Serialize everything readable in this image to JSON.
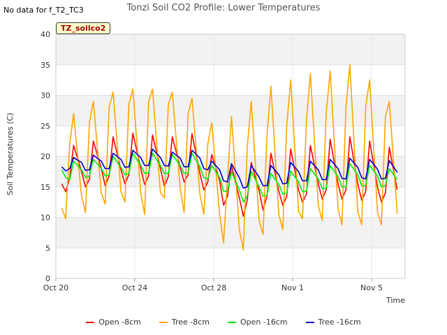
{
  "no_data_text": "No data for f_T2_TC3",
  "badge_text": "TZ_soilco2",
  "chart_data": {
    "type": "line",
    "title": "Tonzi Soil CO2 Profile: Lower Temperatures",
    "xlabel": "Time",
    "ylabel": "Soil Temperatures (C)",
    "xlim": [
      0,
      17.7
    ],
    "ylim": [
      0,
      40
    ],
    "yticks": [
      0,
      5,
      10,
      15,
      20,
      25,
      30,
      35,
      40
    ],
    "xticks": [
      {
        "value": 0,
        "label": "Oct 20"
      },
      {
        "value": 4,
        "label": "Oct 24"
      },
      {
        "value": 8,
        "label": "Oct 28"
      },
      {
        "value": 12,
        "label": "Nov 1"
      },
      {
        "value": 16,
        "label": "Nov 5"
      }
    ],
    "grid": true,
    "legend_position": "bottom",
    "series": [
      {
        "name": "Open -8cm",
        "color": "#ff0000",
        "x": [
          0.3,
          0.5,
          0.7,
          0.9,
          1.3,
          1.5,
          1.7,
          1.9,
          2.3,
          2.5,
          2.7,
          2.9,
          3.3,
          3.5,
          3.7,
          3.9,
          4.3,
          4.5,
          4.7,
          4.9,
          5.3,
          5.5,
          5.7,
          5.9,
          6.3,
          6.5,
          6.7,
          6.9,
          7.3,
          7.5,
          7.7,
          7.9,
          8.3,
          8.5,
          8.7,
          8.9,
          9.3,
          9.5,
          9.7,
          9.9,
          10.3,
          10.5,
          10.7,
          10.9,
          11.3,
          11.5,
          11.7,
          11.9,
          12.3,
          12.5,
          12.7,
          12.9,
          13.3,
          13.5,
          13.7,
          13.9,
          14.3,
          14.5,
          14.7,
          14.9,
          15.3,
          15.5,
          15.7,
          15.9,
          16.3,
          16.5,
          16.7,
          16.9,
          17.3
        ],
        "y": [
          15.5,
          14.2,
          16.5,
          21.8,
          17.5,
          15,
          16.2,
          22.5,
          18,
          15.2,
          16.8,
          23.2,
          17.8,
          15.5,
          17,
          23.8,
          18,
          15.4,
          16.8,
          23.5,
          18,
          15.1,
          16.7,
          23.2,
          18.2,
          15.8,
          17,
          23.7,
          17.2,
          14.5,
          15.8,
          20.3,
          16,
          12,
          13.5,
          18.5,
          13.2,
          10.2,
          12.8,
          19,
          14.4,
          11.2,
          13.5,
          20.5,
          14.3,
          12,
          13.4,
          21.2,
          14.5,
          12.5,
          13.8,
          21.8,
          15.5,
          13,
          14.5,
          22.8,
          15.5,
          13,
          14.5,
          23.2,
          15.5,
          12.8,
          14.2,
          22.5,
          15,
          12.5,
          14,
          21.5,
          14.5
        ]
      },
      {
        "name": "Tree -8cm",
        "color": "#ffa500",
        "x": [
          0.3,
          0.5,
          0.7,
          0.9,
          1.3,
          1.5,
          1.7,
          1.9,
          2.3,
          2.5,
          2.7,
          2.9,
          3.3,
          3.5,
          3.7,
          3.9,
          4.3,
          4.5,
          4.7,
          4.9,
          5.3,
          5.5,
          5.7,
          5.9,
          6.3,
          6.5,
          6.7,
          6.9,
          7.3,
          7.5,
          7.7,
          7.9,
          8.3,
          8.5,
          8.7,
          8.9,
          9.3,
          9.5,
          9.7,
          9.9,
          10.3,
          10.5,
          10.7,
          10.9,
          11.3,
          11.5,
          11.7,
          11.9,
          12.3,
          12.5,
          12.7,
          12.9,
          13.3,
          13.5,
          13.7,
          13.9,
          14.3,
          14.5,
          14.7,
          14.9,
          15.3,
          15.5,
          15.7,
          15.9,
          16.3,
          16.5,
          16.7,
          16.9,
          17.3
        ],
        "y": [
          11.5,
          9.8,
          22,
          27,
          13.5,
          10.8,
          25.5,
          29,
          14,
          12.2,
          28,
          30.5,
          14.2,
          12.5,
          28.5,
          31,
          14,
          10.5,
          29,
          31,
          14,
          13.2,
          28.5,
          30.5,
          14.8,
          10.8,
          27,
          29.5,
          13.8,
          10.5,
          22,
          25.5,
          10.5,
          5.8,
          16.5,
          26.5,
          8,
          4.7,
          21.5,
          29,
          9.5,
          7.2,
          23.5,
          31.5,
          10.5,
          8,
          25,
          32.5,
          11,
          9.8,
          26,
          33.5,
          12,
          9.5,
          27,
          34,
          11.5,
          8.8,
          28,
          35,
          11,
          8.8,
          28,
          32.5,
          10.8,
          8.8,
          26.5,
          29,
          10.6
        ]
      },
      {
        "name": "Open -16cm",
        "color": "#00ee00",
        "x": [
          0.3,
          0.5,
          0.7,
          0.9,
          1.3,
          1.5,
          1.7,
          1.9,
          2.3,
          2.5,
          2.7,
          2.9,
          3.3,
          3.5,
          3.7,
          3.9,
          4.3,
          4.5,
          4.7,
          4.9,
          5.3,
          5.5,
          5.7,
          5.9,
          6.3,
          6.5,
          6.7,
          6.9,
          7.3,
          7.5,
          7.7,
          7.9,
          8.3,
          8.5,
          8.7,
          8.9,
          9.3,
          9.5,
          9.7,
          9.9,
          10.3,
          10.5,
          10.7,
          10.9,
          11.3,
          11.5,
          11.7,
          11.9,
          12.3,
          12.5,
          12.7,
          12.9,
          13.3,
          13.5,
          13.7,
          13.9,
          14.3,
          14.5,
          14.7,
          14.9,
          15.3,
          15.5,
          15.7,
          15.9,
          16.3,
          16.5,
          16.7,
          16.9,
          17.3
        ],
        "y": [
          17.8,
          16.5,
          16.2,
          19.2,
          17.8,
          16.5,
          16.8,
          19.5,
          18,
          16.8,
          17,
          20,
          18.2,
          17,
          17.2,
          20.5,
          18.5,
          17.2,
          17.3,
          20.5,
          18.5,
          17.2,
          17.2,
          20.3,
          18.5,
          17.2,
          17.3,
          20.5,
          18.3,
          16.5,
          16.3,
          18.5,
          16.5,
          14.3,
          14.3,
          17.5,
          14.5,
          12.5,
          13.5,
          17.5,
          15,
          13.5,
          13.6,
          17.2,
          15.4,
          13.8,
          14,
          17.6,
          15.8,
          14.2,
          14.3,
          18,
          16.3,
          14.7,
          14.8,
          18.5,
          16.7,
          15,
          15,
          18.8,
          17,
          15.2,
          15.2,
          18.5,
          16.8,
          15,
          15.2,
          18,
          16.2
        ]
      },
      {
        "name": "Tree -16cm",
        "color": "#0000cc",
        "x": [
          0.3,
          0.5,
          0.7,
          0.9,
          1.3,
          1.5,
          1.7,
          1.9,
          2.3,
          2.5,
          2.7,
          2.9,
          3.3,
          3.5,
          3.7,
          3.9,
          4.3,
          4.5,
          4.7,
          4.9,
          5.3,
          5.5,
          5.7,
          5.9,
          6.3,
          6.5,
          6.7,
          6.9,
          7.3,
          7.5,
          7.7,
          7.9,
          8.3,
          8.5,
          8.7,
          8.9,
          9.3,
          9.5,
          9.7,
          9.9,
          10.3,
          10.5,
          10.7,
          10.9,
          11.3,
          11.5,
          11.7,
          11.9,
          12.3,
          12.5,
          12.7,
          12.9,
          13.3,
          13.5,
          13.7,
          13.9,
          14.3,
          14.5,
          14.7,
          14.9,
          15.3,
          15.5,
          15.7,
          15.9,
          16.3,
          16.5,
          16.7,
          16.9,
          17.3
        ],
        "y": [
          18.3,
          17.6,
          18,
          19.8,
          19,
          17.7,
          17.8,
          20.2,
          19.2,
          18,
          18,
          20.5,
          19.5,
          18.2,
          18.3,
          21,
          19.8,
          18.5,
          18.5,
          21.2,
          19.8,
          18.5,
          18.4,
          20.7,
          19.7,
          18.3,
          18.3,
          21,
          19.7,
          18,
          17.8,
          19.2,
          17.8,
          16,
          15.8,
          18.8,
          16.5,
          14.8,
          15,
          18.5,
          16.6,
          15.2,
          15.2,
          18.5,
          17,
          15.5,
          15.6,
          19,
          17.5,
          16,
          16,
          19.2,
          17.8,
          16.2,
          16.2,
          19.5,
          18,
          16.4,
          16.3,
          19.7,
          18.2,
          16.5,
          16.3,
          19.5,
          17.9,
          16.3,
          16.4,
          19.3,
          17.4
        ]
      }
    ]
  }
}
